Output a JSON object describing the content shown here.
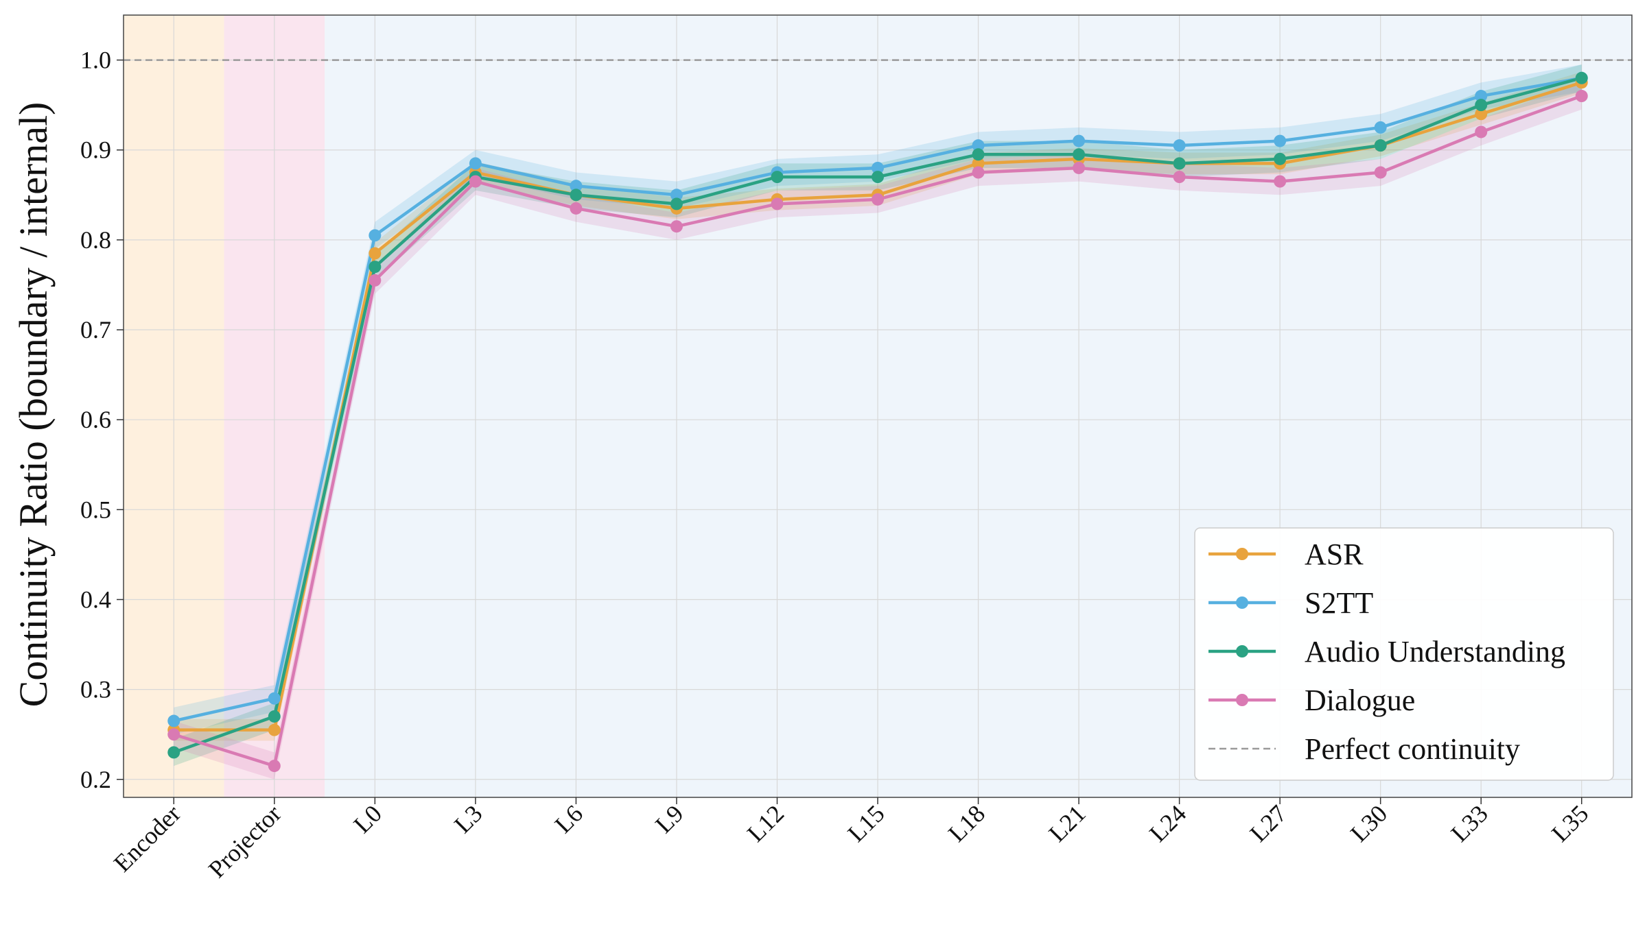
{
  "chart_data": {
    "type": "line",
    "title": "",
    "xlabel": "",
    "ylabel": "Continuity Ratio (boundary / internal)",
    "ylim": [
      0.18,
      1.05
    ],
    "yticks": [
      0.2,
      0.3,
      0.4,
      0.5,
      0.6,
      0.7,
      0.8,
      0.9,
      1.0
    ],
    "ytick_labels": [
      "0.2",
      "0.3",
      "0.4",
      "0.5",
      "0.6",
      "0.7",
      "0.8",
      "0.9",
      "1.0"
    ],
    "categories": [
      "Encoder",
      "Projector",
      "L0",
      "L3",
      "L6",
      "L9",
      "L12",
      "L15",
      "L18",
      "L21",
      "L24",
      "L27",
      "L30",
      "L33",
      "L35"
    ],
    "grid": true,
    "legend_position": "lower-right",
    "shaded_regions": [
      {
        "from": "Encoder",
        "to": "Encoder",
        "color": "#fdebd3"
      },
      {
        "from": "Projector",
        "to": "Projector",
        "color": "#f8dcea"
      },
      {
        "from": "L0",
        "to": "L35",
        "color": "#eaf2fa"
      }
    ],
    "series": [
      {
        "name": "ASR",
        "color": "#e8a33d",
        "values": [
          0.255,
          0.255,
          0.785,
          0.875,
          0.85,
          0.835,
          0.845,
          0.85,
          0.885,
          0.89,
          0.885,
          0.885,
          0.905,
          0.94,
          0.975
        ],
        "band": 0.012
      },
      {
        "name": "S2TT",
        "color": "#56b0e0",
        "values": [
          0.265,
          0.29,
          0.805,
          0.885,
          0.86,
          0.85,
          0.875,
          0.88,
          0.905,
          0.91,
          0.905,
          0.91,
          0.925,
          0.96,
          0.98
        ],
        "band": 0.015
      },
      {
        "name": "Audio Understanding",
        "color": "#2aa283",
        "values": [
          0.23,
          0.27,
          0.77,
          0.87,
          0.85,
          0.84,
          0.87,
          0.87,
          0.895,
          0.895,
          0.885,
          0.89,
          0.905,
          0.95,
          0.98
        ],
        "band": 0.015
      },
      {
        "name": "Dialogue",
        "color": "#d97ab3",
        "values": [
          0.25,
          0.215,
          0.755,
          0.865,
          0.835,
          0.815,
          0.84,
          0.845,
          0.875,
          0.88,
          0.87,
          0.865,
          0.875,
          0.92,
          0.96
        ],
        "band": 0.015
      }
    ],
    "reference_line": {
      "name": "Perfect continuity",
      "value": 1.0,
      "color": "#999999"
    }
  }
}
